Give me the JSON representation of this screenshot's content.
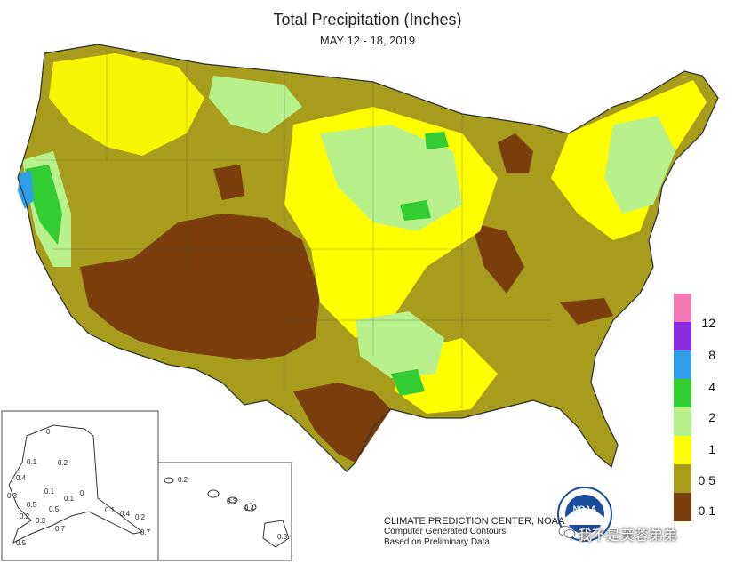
{
  "title": "Total Precipitation (Inches)",
  "subtitle": "MAY 12 - 18, 2019",
  "legend": [
    {
      "label": "",
      "color": "#f07ab4"
    },
    {
      "label": "12",
      "color": "#f07ab4"
    },
    {
      "label": "8",
      "color": "#8a2be2"
    },
    {
      "label": "4",
      "color": "#2f9fe8"
    },
    {
      "label": "2",
      "color": "#33cc33"
    },
    {
      "label": "1",
      "color": "#b8f08c"
    },
    {
      "label": "0.5",
      "color": "#ffff00"
    },
    {
      "label": "0.1",
      "color": "#a89c1c"
    },
    {
      "label": "",
      "color": "#7a3e0c"
    }
  ],
  "credits": {
    "line1": "CLIMATE PREDICTION CENTER, NOAA",
    "line2": "Computer Generated Contours",
    "line3": "Based on Preliminary Data"
  },
  "alaska_labels": [
    "0.1",
    "0.2",
    "0.4",
    "0.3",
    "0.1",
    "0.5",
    "0.1",
    "0.2",
    "0.5",
    "0.3",
    "0.7",
    "0",
    "0",
    "0.1",
    "0.4",
    "0.2",
    "0.7",
    "0.5"
  ],
  "hawaii_labels": [
    "0.2",
    "0.3",
    "0.4",
    "0.3"
  ],
  "watermark": "我不是芙蓉弟弟"
}
